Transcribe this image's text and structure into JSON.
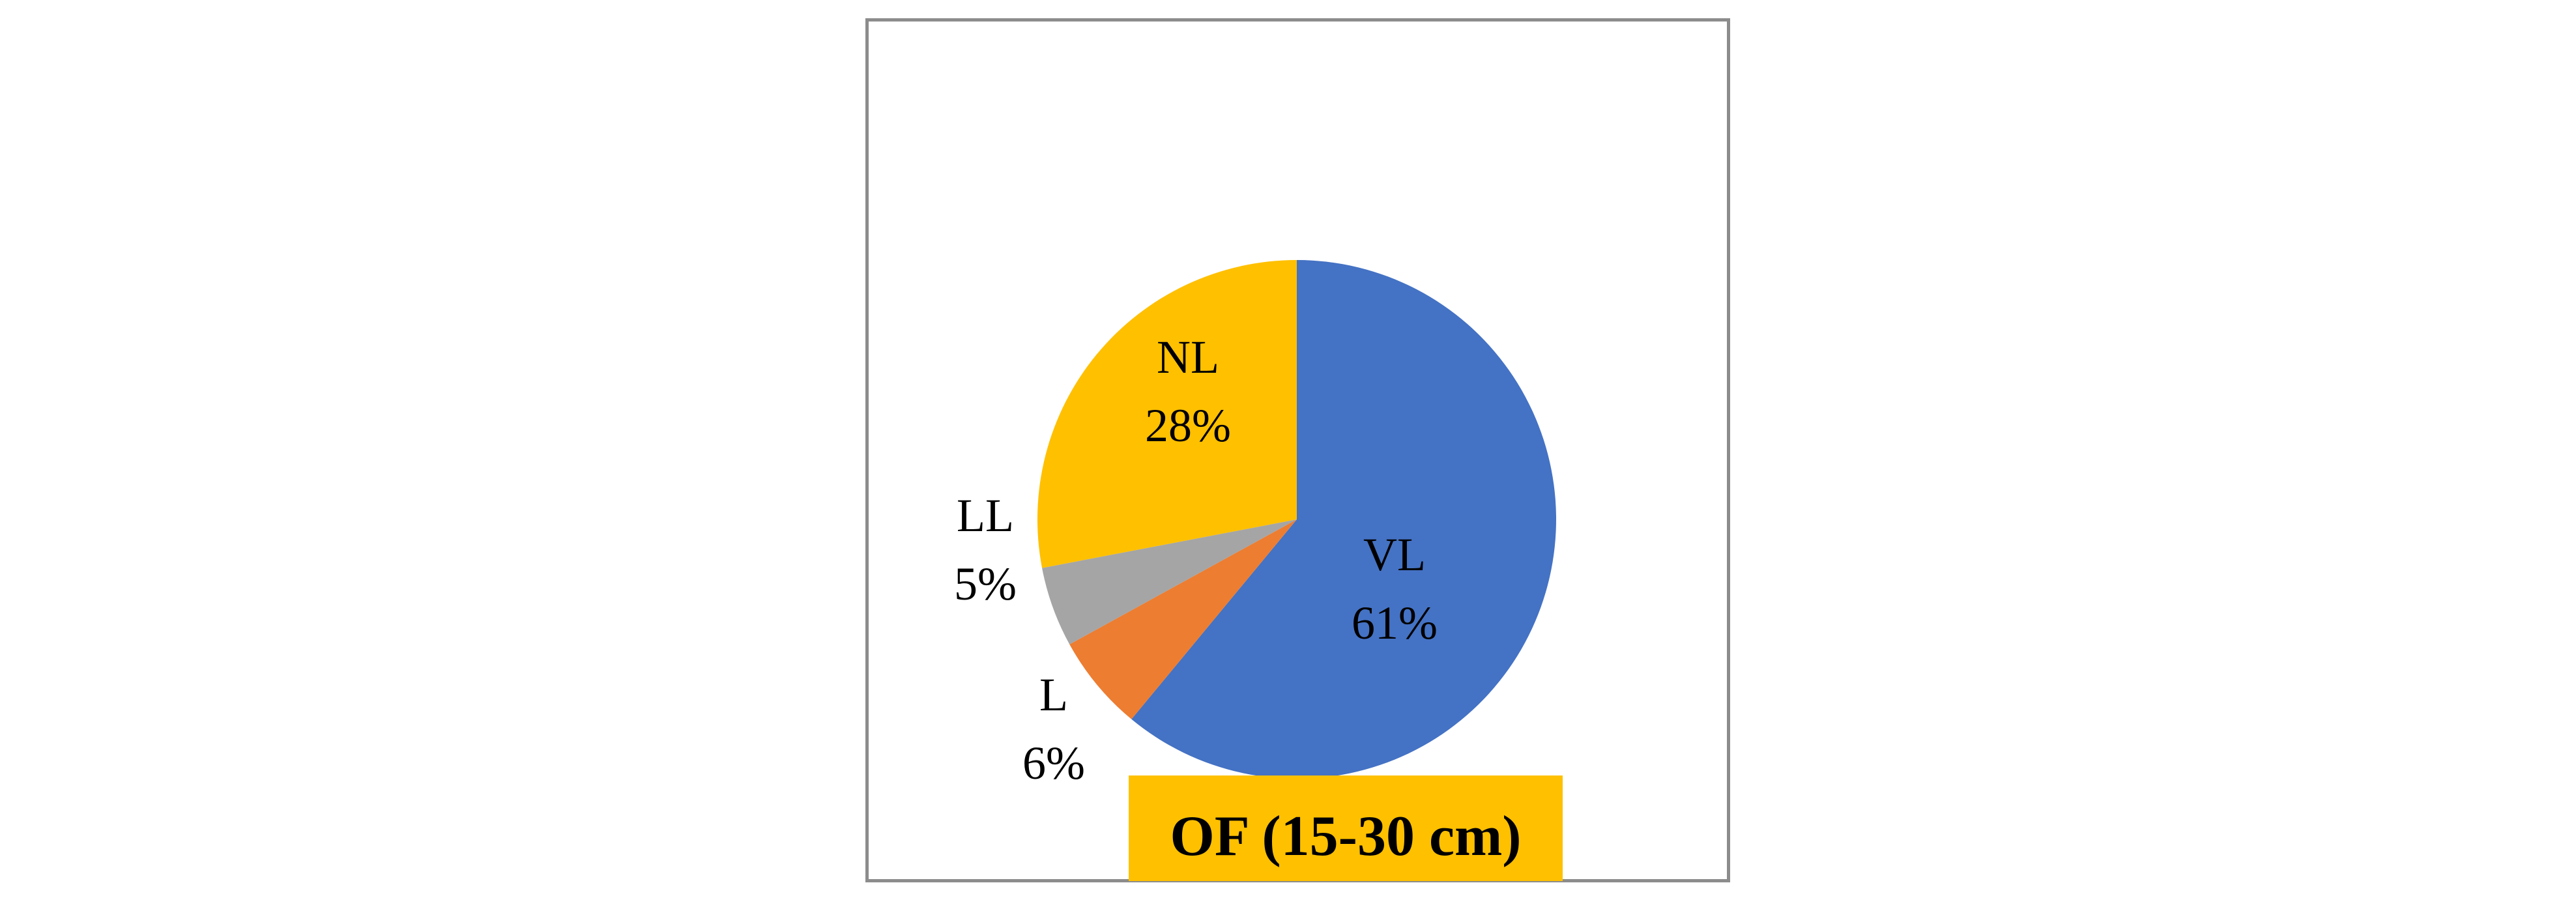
{
  "chart_data": {
    "type": "pie",
    "title": "OF (15-30 cm)",
    "labels": [
      "VL",
      "L",
      "LL",
      "NL"
    ],
    "values": [
      61,
      6,
      5,
      28
    ],
    "percent_labels": [
      "61%",
      "6%",
      "5%",
      "28%"
    ],
    "colors": [
      "#4472C4",
      "#ED7D31",
      "#A5A5A5",
      "#FFC000"
    ],
    "title_background": "#FFC000",
    "start_angle_deg": 0,
    "direction": "clockwise"
  }
}
